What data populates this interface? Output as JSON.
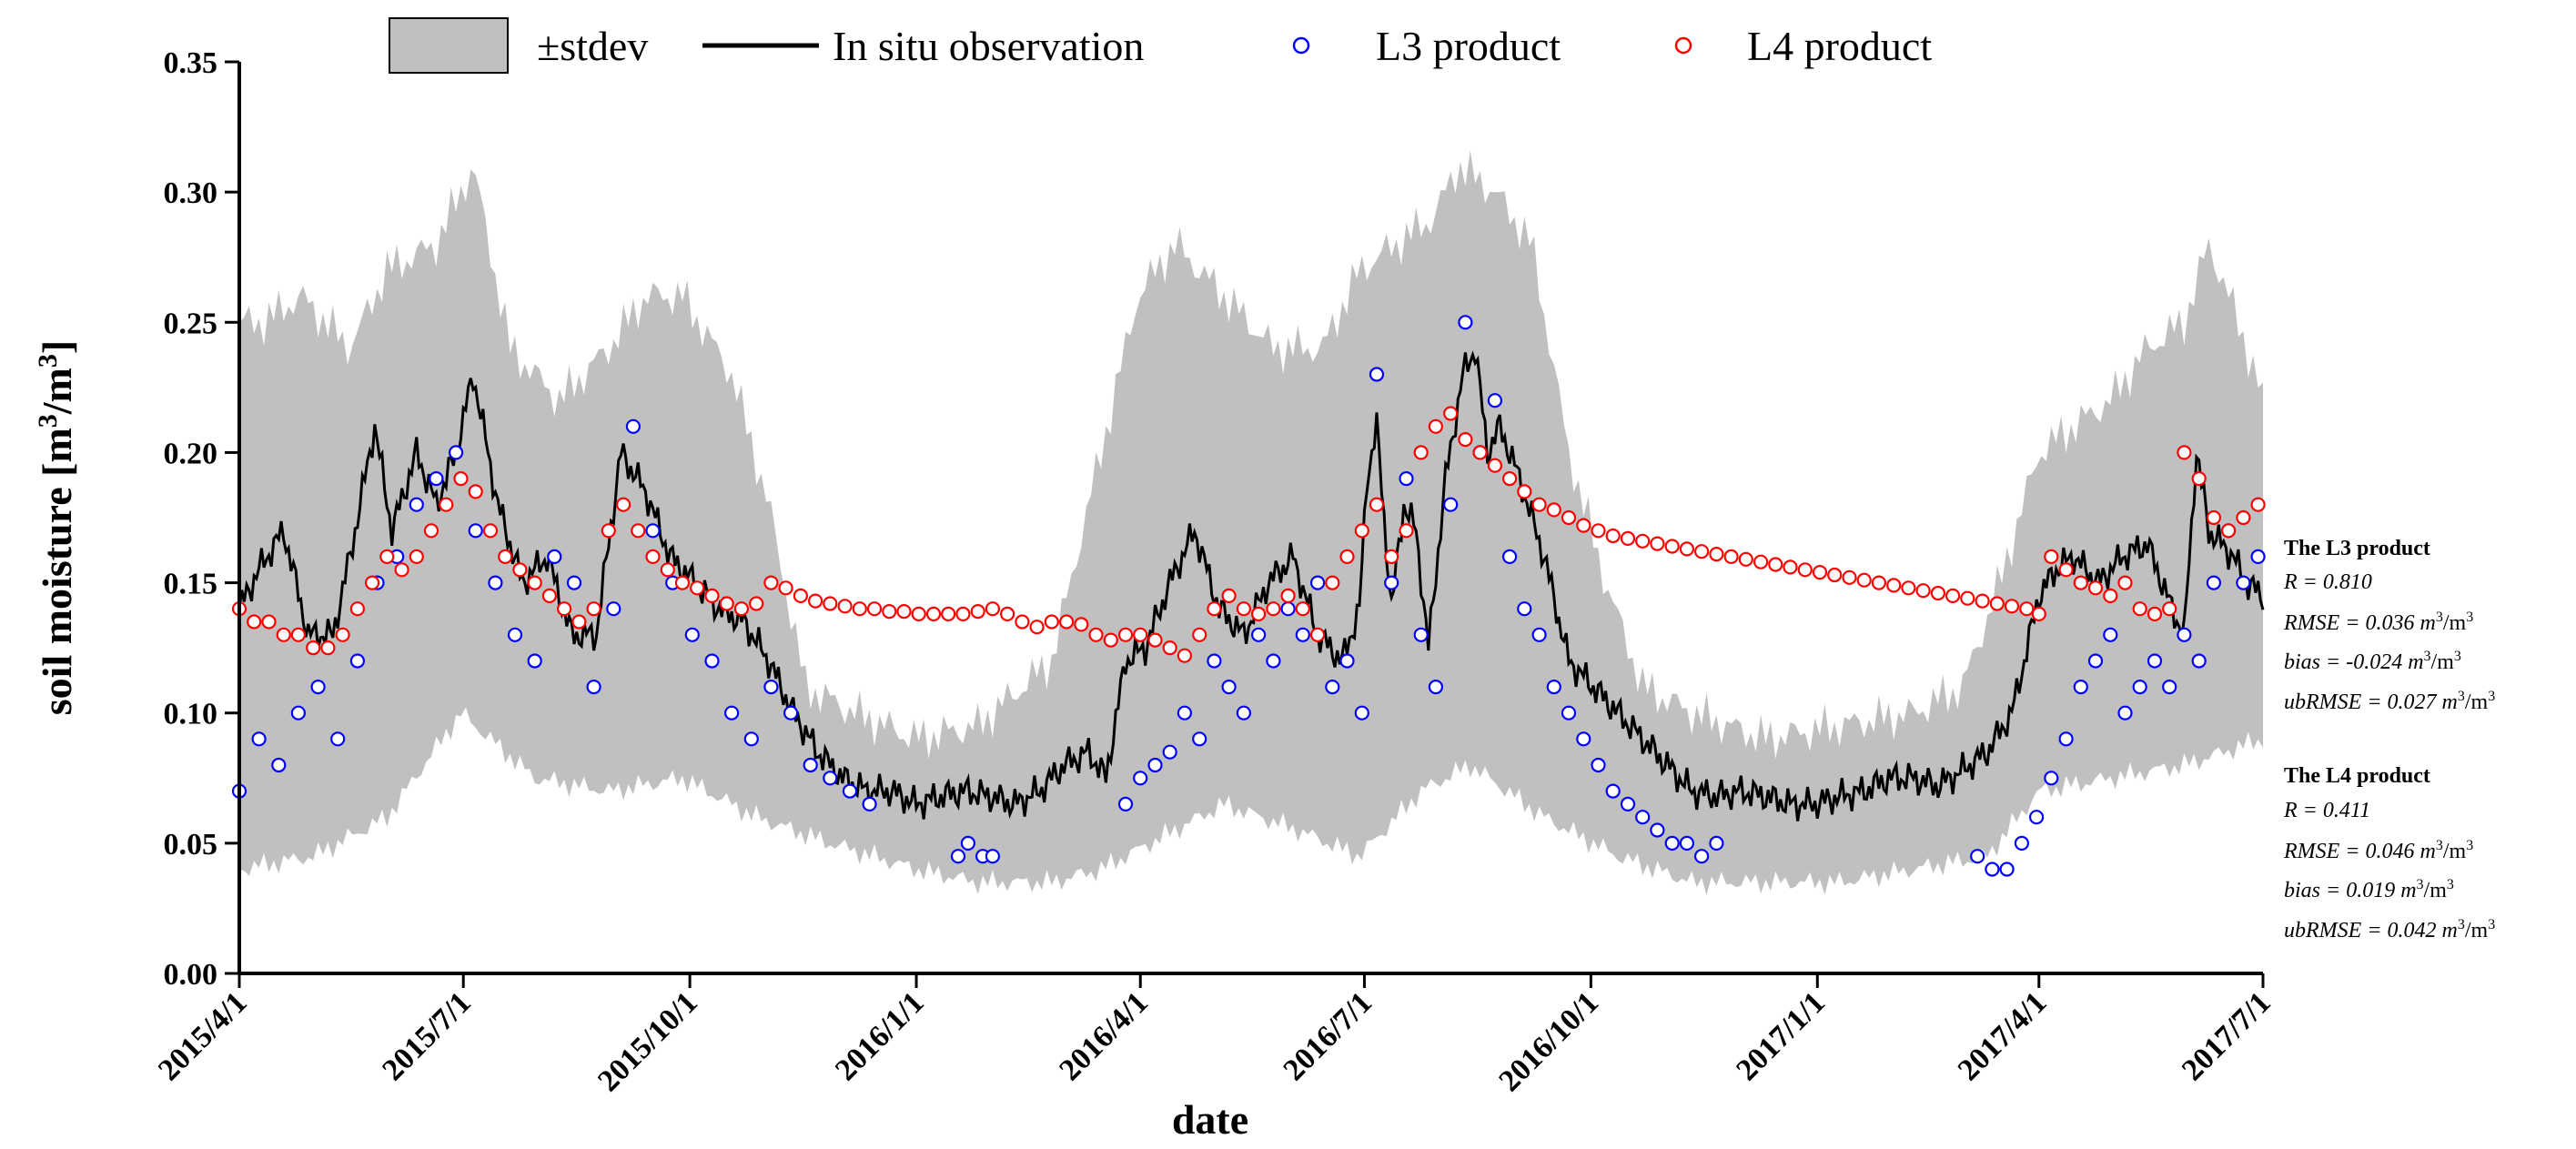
{
  "chart_data": {
    "type": "line",
    "xlabel": "date",
    "ylabel": "soil moisture [m",
    "ylabel_sup": "3",
    "ylabel_mid": "/m",
    "ylabel_end": "]",
    "ylim": [
      0.0,
      0.35
    ],
    "yticks": [
      "0.00",
      "0.05",
      "0.10",
      "0.15",
      "0.20",
      "0.25",
      "0.30",
      "0.35"
    ],
    "x_range_days": [
      0,
      822
    ],
    "xticks": [
      {
        "label": "2015/4/1",
        "day": 0
      },
      {
        "label": "2015/7/1",
        "day": 91
      },
      {
        "label": "2015/10/1",
        "day": 183
      },
      {
        "label": "2016/1/1",
        "day": 275
      },
      {
        "label": "2016/4/1",
        "day": 366
      },
      {
        "label": "2016/7/1",
        "day": 457
      },
      {
        "label": "2016/10/1",
        "day": 549
      },
      {
        "label": "2017/1/1",
        "day": 641
      },
      {
        "label": "2017/4/1",
        "day": 731
      },
      {
        "label": "2017/7/1",
        "day": 822
      }
    ],
    "legend": {
      "stdev": "±stdev",
      "insitu": "In situ observation",
      "l3": "L3 product",
      "l4": "L4 product"
    },
    "colors": {
      "band": "#c0c0c0",
      "insitu": "#000000",
      "l3": "#0000ff",
      "l4": "#ff0000"
    },
    "series": [
      {
        "name": "In situ observation",
        "x": [
          0,
          8,
          18,
          28,
          38,
          45,
          55,
          62,
          72,
          80,
          88,
          95,
          105,
          115,
          125,
          135,
          145,
          155,
          165,
          175,
          185,
          195,
          205,
          215,
          225,
          235,
          245,
          255,
          265,
          275,
          285,
          295,
          305,
          315,
          325,
          335,
          345,
          352,
          360,
          368,
          378,
          388,
          398,
          408,
          418,
          428,
          438,
          448,
          455,
          458,
          462,
          468,
          473,
          478,
          483,
          490,
          497,
          502,
          507,
          512,
          520,
          530,
          540,
          550,
          560,
          570,
          580,
          590,
          600,
          610,
          620,
          630,
          640,
          650,
          660,
          670,
          680,
          690,
          700,
          710,
          720,
          725,
          731,
          738,
          745,
          755,
          765,
          775,
          785,
          790,
          795,
          800,
          805,
          810,
          815,
          822
        ],
        "y": [
          0.14,
          0.155,
          0.17,
          0.13,
          0.13,
          0.16,
          0.21,
          0.17,
          0.2,
          0.18,
          0.2,
          0.23,
          0.18,
          0.15,
          0.16,
          0.13,
          0.13,
          0.2,
          0.185,
          0.16,
          0.15,
          0.14,
          0.135,
          0.12,
          0.1,
          0.085,
          0.075,
          0.07,
          0.07,
          0.065,
          0.068,
          0.07,
          0.068,
          0.065,
          0.07,
          0.08,
          0.085,
          0.075,
          0.12,
          0.125,
          0.15,
          0.17,
          0.14,
          0.13,
          0.15,
          0.16,
          0.13,
          0.12,
          0.14,
          0.19,
          0.21,
          0.14,
          0.18,
          0.17,
          0.125,
          0.19,
          0.23,
          0.24,
          0.2,
          0.21,
          0.19,
          0.16,
          0.12,
          0.11,
          0.1,
          0.09,
          0.08,
          0.07,
          0.068,
          0.07,
          0.068,
          0.065,
          0.065,
          0.068,
          0.07,
          0.075,
          0.075,
          0.072,
          0.078,
          0.085,
          0.1,
          0.12,
          0.145,
          0.155,
          0.16,
          0.15,
          0.16,
          0.165,
          0.14,
          0.13,
          0.2,
          0.17,
          0.165,
          0.16,
          0.15,
          0.145
        ]
      },
      {
        "name": "stdev upper",
        "x": [
          0,
          10,
          25,
          45,
          60,
          80,
          95,
          110,
          130,
          150,
          165,
          180,
          200,
          215,
          230,
          250,
          275,
          300,
          330,
          350,
          365,
          380,
          400,
          420,
          440,
          455,
          470,
          485,
          495,
          510,
          525,
          540,
          555,
          570,
          590,
          620,
          650,
          680,
          700,
          715,
          731,
          745,
          760,
          775,
          790,
          800,
          812,
          822
        ],
        "y": [
          0.25,
          0.25,
          0.26,
          0.24,
          0.27,
          0.28,
          0.31,
          0.24,
          0.22,
          0.24,
          0.26,
          0.26,
          0.23,
          0.18,
          0.11,
          0.1,
          0.09,
          0.095,
          0.12,
          0.2,
          0.26,
          0.28,
          0.26,
          0.24,
          0.24,
          0.27,
          0.28,
          0.29,
          0.31,
          0.3,
          0.28,
          0.2,
          0.15,
          0.11,
          0.1,
          0.09,
          0.095,
          0.1,
          0.11,
          0.15,
          0.2,
          0.21,
          0.22,
          0.24,
          0.25,
          0.28,
          0.25,
          0.22
        ]
      },
      {
        "name": "stdev lower",
        "x": [
          0,
          30,
          60,
          90,
          120,
          150,
          180,
          210,
          240,
          275,
          300,
          330,
          350,
          370,
          400,
          430,
          455,
          480,
          500,
          530,
          560,
          590,
          620,
          650,
          680,
          710,
          731,
          760,
          790,
          822
        ],
        "y": [
          0.04,
          0.045,
          0.06,
          0.1,
          0.075,
          0.07,
          0.075,
          0.06,
          0.05,
          0.04,
          0.035,
          0.035,
          0.04,
          0.05,
          0.065,
          0.055,
          0.045,
          0.07,
          0.08,
          0.06,
          0.045,
          0.035,
          0.035,
          0.035,
          0.04,
          0.045,
          0.07,
          0.075,
          0.08,
          0.09
        ]
      },
      {
        "name": "L3 product",
        "x": [
          0,
          8,
          16,
          24,
          32,
          40,
          48,
          56,
          64,
          72,
          80,
          88,
          96,
          104,
          112,
          120,
          128,
          136,
          144,
          152,
          160,
          168,
          176,
          184,
          192,
          200,
          208,
          216,
          224,
          232,
          240,
          248,
          256,
          292,
          296,
          302,
          306,
          360,
          366,
          372,
          378,
          384,
          390,
          396,
          402,
          408,
          414,
          420,
          426,
          432,
          438,
          444,
          450,
          456,
          462,
          468,
          474,
          480,
          486,
          492,
          498,
          504,
          510,
          516,
          522,
          528,
          534,
          540,
          546,
          552,
          558,
          564,
          570,
          576,
          582,
          588,
          594,
          600,
          706,
          712,
          718,
          724,
          730,
          736,
          742,
          748,
          754,
          760,
          766,
          772,
          778,
          784,
          790,
          796,
          802,
          808,
          814,
          820
        ],
        "y": [
          0.07,
          0.09,
          0.08,
          0.1,
          0.11,
          0.09,
          0.12,
          0.15,
          0.16,
          0.18,
          0.19,
          0.2,
          0.17,
          0.15,
          0.13,
          0.12,
          0.16,
          0.15,
          0.11,
          0.14,
          0.21,
          0.17,
          0.15,
          0.13,
          0.12,
          0.1,
          0.09,
          0.11,
          0.1,
          0.08,
          0.075,
          0.07,
          0.065,
          0.045,
          0.05,
          0.045,
          0.045,
          0.065,
          0.075,
          0.08,
          0.085,
          0.1,
          0.09,
          0.12,
          0.11,
          0.1,
          0.13,
          0.12,
          0.14,
          0.13,
          0.15,
          0.11,
          0.12,
          0.1,
          0.23,
          0.15,
          0.19,
          0.13,
          0.11,
          0.18,
          0.25,
          0.2,
          0.22,
          0.16,
          0.14,
          0.13,
          0.11,
          0.1,
          0.09,
          0.08,
          0.07,
          0.065,
          0.06,
          0.055,
          0.05,
          0.05,
          0.045,
          0.05,
          0.045,
          0.04,
          0.04,
          0.05,
          0.06,
          0.075,
          0.09,
          0.11,
          0.12,
          0.13,
          0.1,
          0.11,
          0.12,
          0.11,
          0.13,
          0.12,
          0.15,
          0.17,
          0.15,
          0.16
        ]
      },
      {
        "name": "L4 product",
        "x": [
          0,
          6,
          12,
          18,
          24,
          30,
          36,
          42,
          48,
          54,
          60,
          66,
          72,
          78,
          84,
          90,
          96,
          102,
          108,
          114,
          120,
          126,
          132,
          138,
          144,
          150,
          156,
          162,
          168,
          174,
          180,
          186,
          192,
          198,
          204,
          210,
          216,
          222,
          228,
          234,
          240,
          246,
          252,
          258,
          264,
          270,
          276,
          282,
          288,
          294,
          300,
          306,
          312,
          318,
          324,
          330,
          336,
          342,
          348,
          354,
          360,
          366,
          372,
          378,
          384,
          390,
          396,
          402,
          408,
          414,
          420,
          426,
          432,
          438,
          444,
          450,
          456,
          462,
          468,
          474,
          480,
          486,
          492,
          498,
          504,
          510,
          516,
          522,
          528,
          534,
          540,
          546,
          552,
          558,
          564,
          570,
          576,
          582,
          588,
          594,
          600,
          606,
          612,
          618,
          624,
          630,
          636,
          642,
          648,
          654,
          660,
          666,
          672,
          678,
          684,
          690,
          696,
          702,
          708,
          714,
          720,
          726,
          731,
          736,
          742,
          748,
          754,
          760,
          766,
          772,
          778,
          784,
          790,
          796,
          802,
          808,
          814,
          820
        ],
        "y": [
          0.14,
          0.135,
          0.135,
          0.13,
          0.13,
          0.125,
          0.125,
          0.13,
          0.14,
          0.15,
          0.16,
          0.155,
          0.16,
          0.17,
          0.18,
          0.19,
          0.185,
          0.17,
          0.16,
          0.155,
          0.15,
          0.145,
          0.14,
          0.135,
          0.14,
          0.17,
          0.18,
          0.17,
          0.16,
          0.155,
          0.15,
          0.148,
          0.145,
          0.142,
          0.14,
          0.142,
          0.15,
          0.148,
          0.145,
          0.143,
          0.142,
          0.141,
          0.14,
          0.14,
          0.139,
          0.139,
          0.138,
          0.138,
          0.138,
          0.138,
          0.139,
          0.14,
          0.138,
          0.135,
          0.133,
          0.135,
          0.135,
          0.134,
          0.13,
          0.128,
          0.13,
          0.13,
          0.128,
          0.125,
          0.122,
          0.13,
          0.14,
          0.145,
          0.14,
          0.138,
          0.14,
          0.145,
          0.14,
          0.13,
          0.15,
          0.16,
          0.17,
          0.18,
          0.16,
          0.17,
          0.2,
          0.21,
          0.215,
          0.205,
          0.2,
          0.195,
          0.19,
          0.185,
          0.18,
          0.178,
          0.175,
          0.172,
          0.17,
          0.168,
          0.167,
          0.166,
          0.165,
          0.164,
          0.163,
          0.162,
          0.161,
          0.16,
          0.159,
          0.158,
          0.157,
          0.156,
          0.155,
          0.154,
          0.153,
          0.152,
          0.151,
          0.15,
          0.149,
          0.148,
          0.147,
          0.146,
          0.145,
          0.144,
          0.143,
          0.142,
          0.141,
          0.14,
          0.138,
          0.16,
          0.155,
          0.15,
          0.148,
          0.145,
          0.15,
          0.14,
          0.138,
          0.14,
          0.2,
          0.19,
          0.175,
          0.17,
          0.175,
          0.18
        ]
      }
    ],
    "stats": {
      "l3": {
        "head": "The L3 product",
        "r": "R = 0.810",
        "rmse": "RMSE = 0.036 m",
        "bias": "bias = -0.024 m",
        "ubrmse": "ubRMSE = 0.027 m"
      },
      "l4": {
        "head": "The L4 product",
        "r": "R = 0.411",
        "rmse": "RMSE = 0.046 m",
        "bias": "bias = 0.019 m",
        "ubrmse": "ubRMSE = 0.042 m"
      },
      "unit_sup": "3",
      "unit_mid": "/m"
    }
  }
}
